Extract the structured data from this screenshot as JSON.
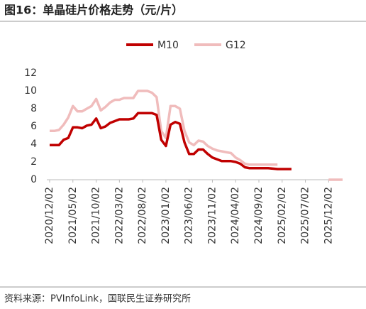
{
  "chart_data": {
    "type": "line",
    "title": "图16：单晶硅片价格走势（元/片）",
    "source": "资料来源：PVInfoLink，国联民生证券研究所",
    "x": [
      "2020/12/02",
      "2021/01/02",
      "2021/02/02",
      "2021/03/02",
      "2021/04/02",
      "2021/05/02",
      "2021/06/02",
      "2021/07/02",
      "2021/08/02",
      "2021/09/02",
      "2021/10/02",
      "2021/11/02",
      "2021/12/02",
      "2022/01/02",
      "2022/02/02",
      "2022/03/02",
      "2022/04/02",
      "2022/05/02",
      "2022/06/02",
      "2022/07/02",
      "2022/08/02",
      "2022/09/02",
      "2022/10/02",
      "2022/11/02",
      "2022/12/02",
      "2023/01/02",
      "2023/02/02",
      "2023/03/02",
      "2023/04/02",
      "2023/05/02",
      "2023/06/02",
      "2023/07/02",
      "2023/08/02",
      "2023/09/02",
      "2023/10/02",
      "2023/11/02",
      "2023/12/02",
      "2024/01/02",
      "2024/02/02",
      "2024/03/02",
      "2024/04/02",
      "2024/05/02",
      "2024/06/02",
      "2024/07/02",
      "2024/08/02",
      "2024/09/02",
      "2024/10/02",
      "2024/11/02",
      "2024/12/02",
      "2025/01/02",
      "2025/02/02",
      "2025/03/02",
      "2025/04/02",
      "2025/05/02",
      "2025/06/02",
      "2025/07/02",
      "2025/08/02",
      "2025/09/02",
      "2025/10/02",
      "2025/11/02",
      "2025/12/02",
      "2026/01/02",
      "2026/02/02",
      "2026/03/02"
    ],
    "series": [
      {
        "name": "M10",
        "color": "#c00000",
        "width": 3.5,
        "values": [
          3.9,
          3.9,
          3.9,
          4.5,
          4.7,
          5.9,
          5.9,
          5.8,
          6.1,
          6.2,
          6.9,
          5.8,
          6.0,
          6.4,
          6.6,
          6.8,
          6.8,
          6.8,
          6.9,
          7.5,
          7.5,
          7.5,
          7.5,
          7.3,
          4.5,
          3.8,
          6.2,
          6.5,
          6.3,
          4.2,
          2.9,
          2.9,
          3.4,
          3.4,
          2.9,
          2.5,
          2.3,
          2.1,
          2.1,
          2.1,
          2.0,
          1.8,
          1.4,
          1.3,
          1.3,
          1.3,
          1.3,
          1.3,
          1.25,
          1.2,
          1.2,
          1.2,
          1.2,
          null,
          null,
          null,
          null,
          null,
          null,
          null,
          null,
          null,
          null,
          null
        ]
      },
      {
        "name": "G12",
        "color": "#f0bcbc",
        "width": 3.5,
        "values": [
          5.5,
          5.5,
          5.6,
          6.2,
          7.0,
          8.3,
          7.7,
          7.7,
          8.0,
          8.3,
          9.1,
          7.8,
          8.2,
          8.7,
          9.0,
          9.0,
          9.2,
          9.2,
          9.2,
          10.0,
          10.0,
          10.0,
          9.8,
          9.3,
          5.5,
          4.7,
          8.3,
          8.3,
          8.0,
          5.5,
          4.2,
          3.9,
          4.4,
          4.3,
          3.8,
          3.5,
          3.3,
          3.2,
          3.1,
          3.0,
          2.5,
          2.2,
          1.8,
          1.7,
          1.7,
          1.7,
          1.7,
          1.7,
          1.7,
          1.7,
          null,
          null,
          null,
          null,
          null,
          null,
          null,
          null,
          null,
          null,
          0,
          0,
          0,
          0
        ]
      }
    ],
    "xlim": [
      "2020/12/02",
      "2026/03/02"
    ],
    "xticks": [
      "2020/12/02",
      "2021/05/02",
      "2021/10/02",
      "2022/03/02",
      "2022/08/02",
      "2023/01/02",
      "2023/06/02",
      "2023/11/02",
      "2024/04/02",
      "2024/09/02",
      "2025/02/02",
      "2025/07/02",
      "2025/12/02"
    ],
    "ylim": [
      0,
      12
    ],
    "yticks": [
      0,
      2,
      4,
      6,
      8,
      10,
      12
    ],
    "grid": false,
    "legend": "top"
  }
}
